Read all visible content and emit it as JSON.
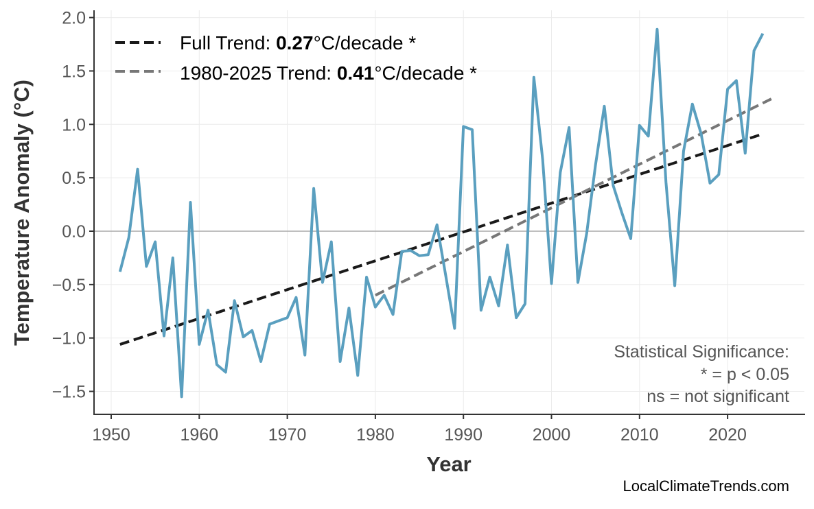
{
  "chart_data": {
    "type": "line",
    "xlabel": "Year",
    "ylabel": "Temperature Anomaly (°C)",
    "xlim": [
      1947,
      2029
    ],
    "ylim": [
      -1.72,
      2.07
    ],
    "xticks": [
      1950,
      1960,
      1970,
      1980,
      1990,
      2000,
      2010,
      2020
    ],
    "yticks": [
      2.0,
      1.5,
      1.0,
      0.5,
      0.0,
      -0.5,
      -1.0,
      -1.5
    ],
    "ytick_labels": [
      "2.0",
      "1.5",
      "1.0",
      "0.5",
      "0.0",
      "−0.5",
      "−1.0",
      "−1.5"
    ],
    "grid": true,
    "zero_line": true,
    "series": [
      {
        "color": "#5a9fbf",
        "x": [
          1951,
          1952,
          1953,
          1954,
          1955,
          1956,
          1957,
          1958,
          1959,
          1960,
          1961,
          1962,
          1963,
          1964,
          1965,
          1966,
          1967,
          1968,
          1969,
          1970,
          1971,
          1972,
          1973,
          1974,
          1975,
          1976,
          1977,
          1978,
          1979,
          1980,
          1981,
          1982,
          1983,
          1984,
          1985,
          1986,
          1987,
          1988,
          1989,
          1990,
          1991,
          1992,
          1993,
          1994,
          1995,
          1996,
          1997,
          1998,
          1999,
          2000,
          2001,
          2002,
          2003,
          2004,
          2005,
          2006,
          2007,
          2008,
          2009,
          2010,
          2011,
          2012,
          2013,
          2014,
          2015,
          2016,
          2017,
          2018,
          2019,
          2020,
          2021,
          2022,
          2023,
          2024
        ],
        "y": [
          -0.38,
          -0.06,
          0.58,
          -0.33,
          -0.1,
          -0.98,
          -0.25,
          -1.55,
          0.27,
          -1.06,
          -0.74,
          -1.25,
          -1.32,
          -0.65,
          -0.99,
          -0.93,
          -1.22,
          -0.87,
          -0.84,
          -0.81,
          -0.62,
          -1.16,
          0.4,
          -0.48,
          -0.1,
          -1.22,
          -0.72,
          -1.35,
          -0.43,
          -0.71,
          -0.6,
          -0.78,
          -0.19,
          -0.18,
          -0.23,
          -0.22,
          0.06,
          -0.42,
          -0.91,
          0.98,
          0.95,
          -0.74,
          -0.43,
          -0.7,
          -0.13,
          -0.81,
          -0.68,
          1.44,
          0.67,
          -0.49,
          0.55,
          0.97,
          -0.48,
          -0.02,
          0.62,
          1.17,
          0.43,
          0.17,
          -0.07,
          0.99,
          0.89,
          1.89,
          0.46,
          -0.51,
          0.75,
          1.19,
          0.91,
          0.45,
          0.53,
          1.33,
          1.41,
          0.73,
          1.69,
          1.85
        ]
      }
    ],
    "trends": [
      {
        "label_prefix": "Full Trend: ",
        "value": "0.27",
        "label_suffix": "°C/decade *",
        "color": "#1a1a1a",
        "x": [
          1951,
          2024
        ],
        "y": [
          -1.06,
          0.91
        ]
      },
      {
        "label_prefix": "1980-2025 Trend: ",
        "value": "0.41",
        "label_suffix": "°C/decade *",
        "color": "#777777",
        "x": [
          1980,
          2025
        ],
        "y": [
          -0.6,
          1.24
        ]
      }
    ],
    "legend_position": "top-left",
    "annotation": [
      "Statistical Significance:",
      "* = p < 0.05",
      "ns = not significant"
    ],
    "credit": "LocalClimateTrends.com"
  }
}
